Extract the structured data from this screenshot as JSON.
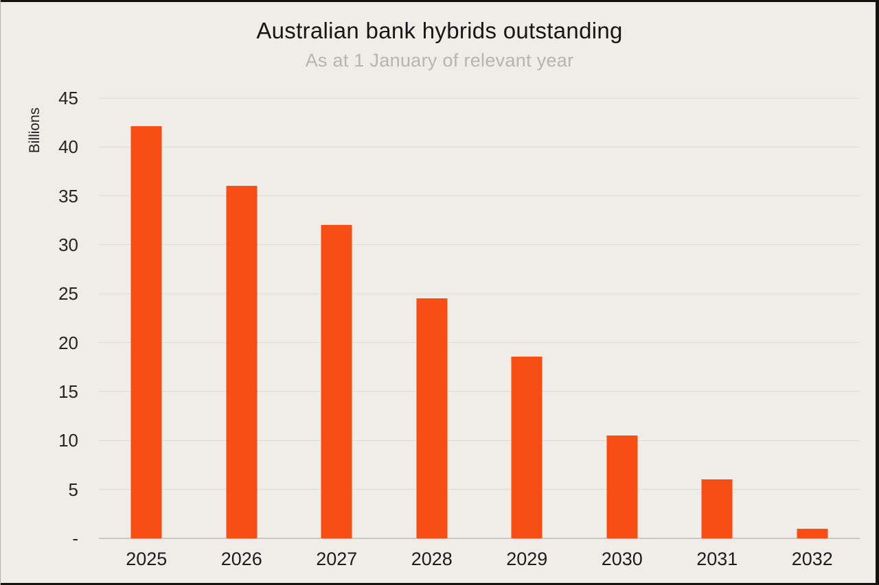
{
  "frame": {
    "background_color": "#f0ece8",
    "letterbox_color": "#151210"
  },
  "chart_data": {
    "type": "bar",
    "title": "Australian bank hybrids outstanding",
    "subtitle": "As at 1 January of relevant year",
    "ylabel": "Billions",
    "xlabel": "",
    "categories": [
      "2025",
      "2026",
      "2027",
      "2028",
      "2029",
      "2030",
      "2031",
      "2032"
    ],
    "values": [
      42.1,
      36.0,
      32.0,
      24.5,
      18.6,
      10.5,
      6.0,
      1.0
    ],
    "ylim": [
      0,
      45
    ],
    "ytick_step": 5,
    "ytick_labels_top_down": [
      "45",
      "40",
      "35",
      "30",
      "25",
      "20",
      "15",
      "10",
      "5",
      "-"
    ],
    "grid": true,
    "legend_position": "none",
    "bar_color": "#f84d15",
    "grid_color": "#dedbd7",
    "axis_line_color": "#ccc7c2",
    "title_color": "#161616",
    "subtitle_color": "#b8b3af"
  }
}
